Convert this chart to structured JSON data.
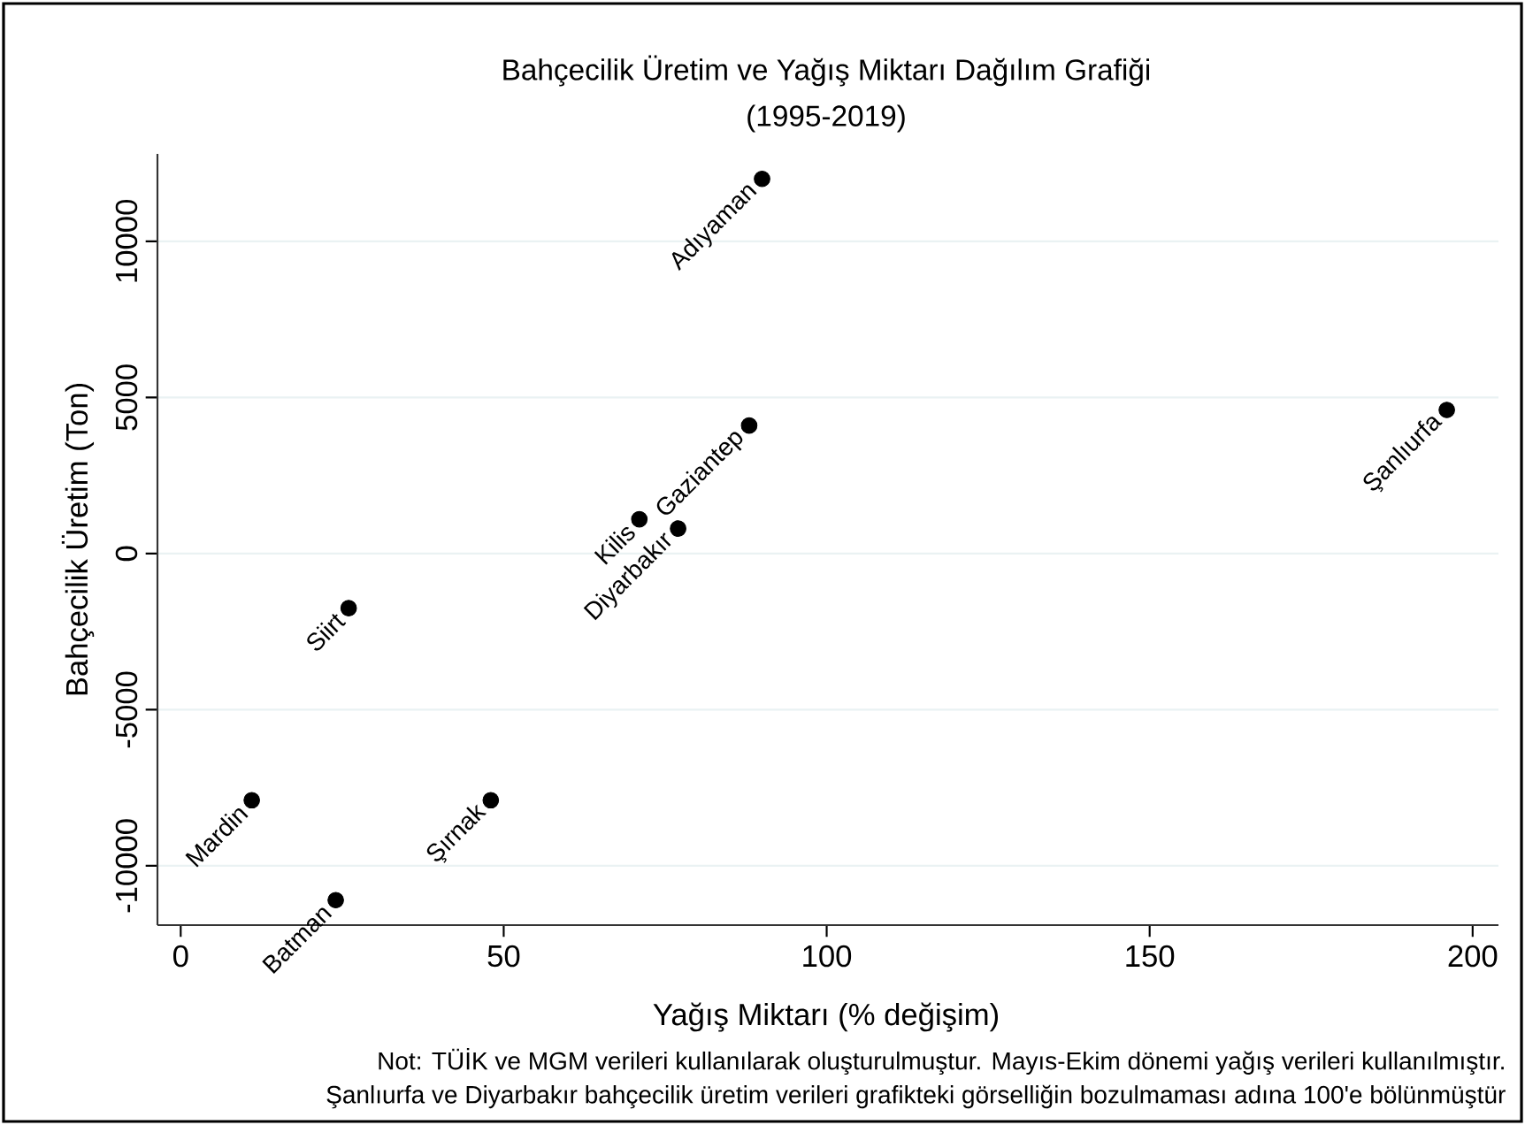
{
  "chart_data": {
    "type": "scatter",
    "title": "Bahçecilik Üretim ve Yağış Miktarı Dağılım Grafiği",
    "subtitle": "(1995-2019)",
    "xlabel": "Yağış Miktarı (% değişim)",
    "ylabel": "Bahçecilik Üretim (Ton)",
    "x": [
      90,
      88,
      71,
      77,
      26,
      11,
      48,
      24,
      196
    ],
    "values": [
      12000,
      4100,
      1100,
      800,
      -1750,
      -7900,
      -7900,
      -11100,
      4600
    ],
    "color": "#000000",
    "grid": "y",
    "xlim": [
      -3.6,
      204
    ],
    "ylim": [
      -11900,
      12800
    ],
    "xticks": [
      0,
      50,
      100,
      150,
      200
    ],
    "yticks": [
      -10000,
      -5000,
      0,
      5000,
      10000
    ],
    "annotations": [
      {
        "text": "Adıyaman",
        "x": 90,
        "y": 12000
      },
      {
        "text": "Gaziantep",
        "x": 88,
        "y": 4100
      },
      {
        "text": "Kilis",
        "x": 71,
        "y": 1100
      },
      {
        "text": "Diyarbakır",
        "x": 77,
        "y": 800
      },
      {
        "text": "Siirt",
        "x": 26,
        "y": -1750
      },
      {
        "text": "Mardin",
        "x": 11,
        "y": -7900
      },
      {
        "text": "Şırnak",
        "x": 48,
        "y": -7900
      },
      {
        "text": "Batman",
        "x": 24,
        "y": -11100
      },
      {
        "text": "Şanlıurfa",
        "x": 196,
        "y": 4600
      },
      "Not: TÜİK ve MGM verileri kullanılarak oluşturulmuştur. Mayıs-Ekim dönemi yağış verileri kullanılmıştır.",
      "Şanlıurfa ve Diyarbakır bahçecilik üretim verileri grafikteki görselliğin bozulmaması adına 100'e bölünmüştür"
    ]
  }
}
